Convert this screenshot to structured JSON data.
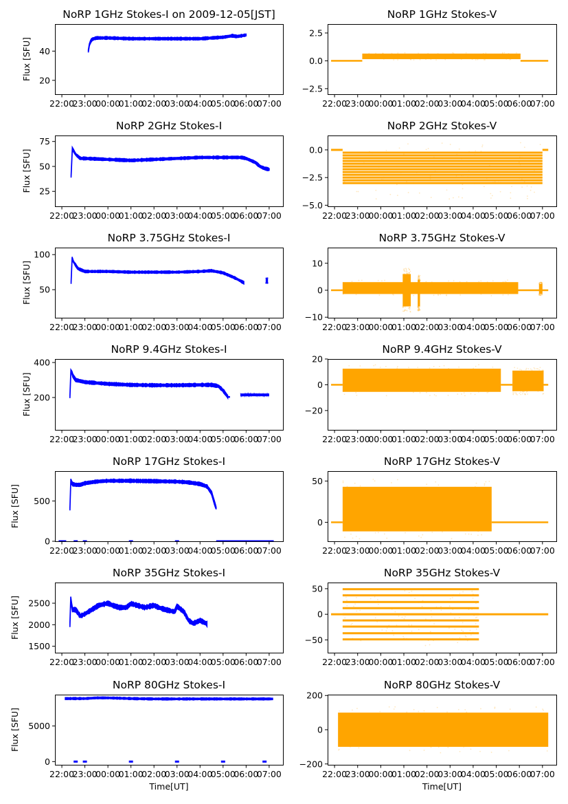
{
  "figure": {
    "xlabel": "Time[UT]",
    "ylabel": "Flux [SFU]",
    "colors": {
      "stokes_i": "#0000ff",
      "stokes_v": "#ffa500"
    }
  },
  "chart_data": [
    {
      "type": "scatter",
      "panel": "1GHz Stokes-I",
      "title": "NoRP 1GHz Stokes-I on 2009-12-05[JST]",
      "xlabel": "",
      "ylabel": "Flux [SFU]",
      "x_ticks": [
        "22:00",
        "23:00",
        "00:00",
        "01:00",
        "02:00",
        "03:00",
        "04:00",
        "05:00",
        "06:00",
        "07:00"
      ],
      "y_ticks": [
        20,
        40
      ],
      "ylim": [
        10.5,
        58.5
      ],
      "series": [
        {
          "name": "Stokes-I",
          "color": "#0000ff",
          "style": "band",
          "x_hours": [
            1.15,
            1.2,
            1.3,
            1.5,
            2.0,
            3.0,
            4.0,
            5.0,
            6.0,
            6.5,
            7.0,
            7.4,
            7.6,
            8.0
          ],
          "center": [
            40,
            45,
            48,
            49,
            49,
            48.5,
            48.5,
            48.5,
            48.5,
            49,
            49.5,
            50.5,
            50,
            51
          ],
          "halfwidth": 0.8
        }
      ]
    },
    {
      "type": "scatter",
      "panel": "1GHz Stokes-V",
      "title": "NoRP 1GHz Stokes-V",
      "xlabel": "",
      "ylabel": "",
      "x_ticks": [
        "22:00",
        "23:00",
        "00:00",
        "01:00",
        "02:00",
        "03:00",
        "04:00",
        "05:00",
        "06:00",
        "07:00"
      ],
      "y_ticks": [
        -2.5,
        0.0,
        2.5
      ],
      "y_tick_labels": [
        "−2.5",
        "0.0",
        "2.5"
      ],
      "ylim": [
        -3.0,
        3.3
      ],
      "series": [
        {
          "name": "Stokes-V",
          "color": "#ffa500",
          "style": "band",
          "segments": [
            {
              "x": [
                -0.15,
                1.2
              ],
              "center": 0.0,
              "halfwidth": 0.04
            },
            {
              "x": [
                1.2,
                8.05
              ],
              "center": 0.4,
              "halfwidth": 0.25
            },
            {
              "x": [
                8.05,
                9.25
              ],
              "center": 0.0,
              "halfwidth": 0.04
            }
          ]
        }
      ]
    },
    {
      "type": "scatter",
      "panel": "2GHz Stokes-I",
      "title": "NoRP 2GHz Stokes-I",
      "xlabel": "",
      "ylabel": "Flux [SFU]",
      "x_ticks": [
        "22:00",
        "23:00",
        "00:00",
        "01:00",
        "02:00",
        "03:00",
        "04:00",
        "05:00",
        "06:00",
        "07:00"
      ],
      "y_ticks": [
        25,
        50,
        75
      ],
      "ylim": [
        10,
        81
      ],
      "series": [
        {
          "name": "Stokes-I",
          "color": "#0000ff",
          "style": "band",
          "x_hours": [
            0.4,
            0.42,
            0.45,
            0.6,
            0.8,
            1.0,
            2.0,
            3.0,
            4.0,
            5.0,
            6.0,
            7.0,
            7.8,
            8.0,
            8.4,
            8.6,
            8.8,
            9.0
          ],
          "center": [
            40,
            72,
            68,
            62,
            58,
            58,
            57,
            56,
            57,
            58,
            59,
            59,
            59,
            58,
            54,
            50,
            48,
            47
          ],
          "halfwidth": 1.2
        }
      ]
    },
    {
      "type": "scatter",
      "panel": "2GHz Stokes-V",
      "title": "NoRP 2GHz Stokes-V",
      "xlabel": "",
      "ylabel": "",
      "x_ticks": [
        "22:00",
        "23:00",
        "00:00",
        "01:00",
        "02:00",
        "03:00",
        "04:00",
        "05:00",
        "06:00",
        "07:00"
      ],
      "y_ticks": [
        -5.0,
        -2.5,
        0.0
      ],
      "y_tick_labels": [
        "−5.0",
        "−2.5",
        "0.0"
      ],
      "ylim": [
        -5.1,
        1.3
      ],
      "series": [
        {
          "name": "Stokes-V",
          "color": "#ffa500",
          "style": "levels",
          "x_range": [
            0.35,
            9.0
          ],
          "levels": [
            -0.25,
            -0.5,
            -0.75,
            -1.0,
            -1.25,
            -1.5,
            -1.75,
            -2.0,
            -2.25,
            -2.5,
            -2.75,
            -3.0
          ],
          "zero_line_x": [
            [
              -0.15,
              0.35
            ],
            [
              9.0,
              9.25
            ]
          ]
        }
      ]
    },
    {
      "type": "scatter",
      "panel": "3.75GHz Stokes-I",
      "title": "NoRP 3.75GHz Stokes-I",
      "xlabel": "",
      "ylabel": "Flux [SFU]",
      "x_ticks": [
        "22:00",
        "23:00",
        "00:00",
        "01:00",
        "02:00",
        "03:00",
        "04:00",
        "05:00",
        "06:00",
        "07:00"
      ],
      "y_ticks": [
        50,
        100
      ],
      "ylim": [
        10,
        110
      ],
      "series": [
        {
          "name": "Stokes-I",
          "color": "#0000ff",
          "style": "band",
          "x_hours": [
            0.4,
            0.42,
            0.5,
            0.7,
            1.0,
            2.0,
            3.0,
            4.0,
            5.0,
            6.0,
            6.5,
            7.0,
            7.5,
            7.9
          ],
          "center": [
            60,
            98,
            90,
            80,
            76,
            76,
            75,
            75,
            75,
            76,
            77,
            74,
            67,
            60
          ],
          "halfwidth": 1.5,
          "extra": {
            "x": [
              8.85,
              8.95
            ],
            "center": 63,
            "halfwidth": 3
          }
        }
      ]
    },
    {
      "type": "scatter",
      "panel": "3.75GHz Stokes-V",
      "title": "NoRP 3.75GHz Stokes-V",
      "xlabel": "",
      "ylabel": "",
      "x_ticks": [
        "22:00",
        "23:00",
        "00:00",
        "01:00",
        "02:00",
        "03:00",
        "04:00",
        "05:00",
        "06:00",
        "07:00"
      ],
      "y_ticks": [
        -10,
        0,
        10
      ],
      "y_tick_labels": [
        "−10",
        "0",
        "10"
      ],
      "ylim": [
        -10.2,
        15.8
      ],
      "series": [
        {
          "name": "Stokes-V",
          "color": "#ffa500",
          "style": "band",
          "segments": [
            {
              "x": [
                -0.15,
                0.35
              ],
              "center": 0,
              "halfwidth": 0.3
            },
            {
              "x": [
                0.35,
                7.95
              ],
              "center": 0.8,
              "halfwidth": 2.2
            },
            {
              "x": [
                7.95,
                9.25
              ],
              "center": 0,
              "halfwidth": 0.3
            },
            {
              "x": [
                8.85,
                9.0
              ],
              "center": 0.5,
              "halfwidth": 1.8
            },
            {
              "x": [
                2.95,
                3.3
              ],
              "center": 0,
              "halfwidth": 6
            },
            {
              "x": [
                3.6,
                3.7
              ],
              "center": -1,
              "halfwidth": 5
            }
          ]
        }
      ]
    },
    {
      "type": "scatter",
      "panel": "9.4GHz Stokes-I",
      "title": "NoRP 9.4GHz Stokes-I",
      "xlabel": "",
      "ylabel": "Flux [SFU]",
      "x_ticks": [
        "22:00",
        "23:00",
        "00:00",
        "01:00",
        "02:00",
        "03:00",
        "04:00",
        "05:00",
        "06:00",
        "07:00"
      ],
      "y_ticks": [
        200,
        400
      ],
      "ylim": [
        15,
        420
      ],
      "series": [
        {
          "name": "Stokes-I",
          "color": "#0000ff",
          "style": "band",
          "x_hours": [
            0.35,
            0.4,
            0.45,
            0.6,
            1.0,
            2.0,
            3.0,
            4.0,
            5.0,
            6.0,
            6.5,
            6.8,
            7.0,
            7.2
          ],
          "center": [
            205,
            375,
            330,
            300,
            288,
            278,
            272,
            270,
            270,
            272,
            272,
            265,
            240,
            205
          ],
          "halfwidth": 8,
          "extra_segments": [
            {
              "x": [
                7.2,
                7.3
              ],
              "center": 203,
              "halfwidth": 5
            },
            {
              "x": [
                7.75,
                9.0
              ],
              "center": 215,
              "halfwidth": 8
            }
          ]
        }
      ]
    },
    {
      "type": "scatter",
      "panel": "9.4GHz Stokes-V",
      "title": "NoRP 9.4GHz Stokes-V",
      "xlabel": "",
      "ylabel": "",
      "x_ticks": [
        "22:00",
        "23:00",
        "00:00",
        "01:00",
        "02:00",
        "03:00",
        "04:00",
        "05:00",
        "06:00",
        "07:00"
      ],
      "y_ticks": [
        -20,
        0,
        20
      ],
      "y_tick_labels": [
        "−20",
        "0",
        "20"
      ],
      "ylim": [
        -35,
        20
      ],
      "series": [
        {
          "name": "Stokes-V",
          "color": "#ffa500",
          "style": "band",
          "segments": [
            {
              "x": [
                -0.15,
                0.35
              ],
              "center": 0,
              "halfwidth": 0.6
            },
            {
              "x": [
                0.35,
                7.2
              ],
              "center": 3.5,
              "halfwidth": 9
            },
            {
              "x": [
                7.2,
                7.7
              ],
              "center": 0,
              "halfwidth": 0.6
            },
            {
              "x": [
                7.7,
                9.05
              ],
              "center": 3,
              "halfwidth": 8
            },
            {
              "x": [
                9.05,
                9.25
              ],
              "center": 0,
              "halfwidth": 0.6
            }
          ]
        }
      ]
    },
    {
      "type": "scatter",
      "panel": "17GHz Stokes-I",
      "title": "NoRP 17GHz Stokes-I",
      "xlabel": "",
      "ylabel": "Flux [SFU]",
      "x_ticks": [
        "22:00",
        "23:00",
        "00:00",
        "01:00",
        "02:00",
        "03:00",
        "04:00",
        "05:00",
        "06:00",
        "07:00"
      ],
      "y_ticks": [
        0,
        500
      ],
      "ylim": [
        0,
        870
      ],
      "series": [
        {
          "name": "Stokes-I",
          "color": "#0000ff",
          "style": "band",
          "x_hours": [
            0.35,
            0.38,
            0.45,
            0.6,
            0.8,
            1.0,
            1.5,
            2.0,
            3.0,
            4.0,
            5.0,
            5.5,
            6.0,
            6.3,
            6.5,
            6.6,
            6.7
          ],
          "center": [
            400,
            760,
            710,
            700,
            700,
            720,
            740,
            750,
            750,
            745,
            740,
            730,
            710,
            680,
            600,
            500,
            410
          ],
          "halfwidth": 18,
          "zero_points": [
            -0.05,
            0.1,
            0.6,
            1.0,
            3.0,
            5.0
          ],
          "zero_line_x": [
            6.7,
            9.2
          ]
        }
      ]
    },
    {
      "type": "scatter",
      "panel": "17GHz Stokes-V",
      "title": "NoRP 17GHz Stokes-V",
      "xlabel": "",
      "ylabel": "",
      "x_ticks": [
        "22:00",
        "23:00",
        "00:00",
        "01:00",
        "02:00",
        "03:00",
        "04:00",
        "05:00",
        "06:00",
        "07:00"
      ],
      "y_ticks": [
        0,
        50
      ],
      "ylim": [
        -23,
        62
      ],
      "series": [
        {
          "name": "Stokes-V",
          "color": "#ffa500",
          "style": "band",
          "segments": [
            {
              "x": [
                -0.15,
                0.35
              ],
              "center": 0,
              "halfwidth": 1
            },
            {
              "x": [
                0.35,
                6.8
              ],
              "center": 16,
              "halfwidth": 27
            },
            {
              "x": [
                6.8,
                9.25
              ],
              "center": 0,
              "halfwidth": 1
            }
          ]
        }
      ]
    },
    {
      "type": "scatter",
      "panel": "35GHz Stokes-I",
      "title": "NoRP 35GHz Stokes-I",
      "xlabel": "",
      "ylabel": "Flux [SFU]",
      "x_ticks": [
        "22:00",
        "23:00",
        "00:00",
        "01:00",
        "02:00",
        "03:00",
        "04:00",
        "05:00",
        "06:00",
        "07:00"
      ],
      "y_ticks": [
        1500,
        2000,
        2500
      ],
      "ylim": [
        1350,
        2980
      ],
      "series": [
        {
          "name": "Stokes-I",
          "color": "#0000ff",
          "style": "band",
          "x_hours": [
            0.35,
            0.38,
            0.45,
            0.6,
            0.8,
            1.0,
            1.3,
            1.6,
            2.0,
            2.2,
            2.5,
            2.8,
            3.0,
            3.4,
            3.6,
            4.0,
            4.2,
            4.5,
            4.9,
            5.0,
            5.3,
            5.5,
            5.7,
            5.8,
            6.0,
            6.3
          ],
          "center": [
            2000,
            2650,
            2350,
            2350,
            2200,
            2250,
            2350,
            2450,
            2500,
            2450,
            2400,
            2400,
            2490,
            2430,
            2400,
            2450,
            2400,
            2350,
            2300,
            2430,
            2300,
            2100,
            2030,
            2050,
            2100,
            2020
          ],
          "halfwidth": 45
        }
      ]
    },
    {
      "type": "scatter",
      "panel": "35GHz Stokes-V",
      "title": "NoRP 35GHz Stokes-V",
      "xlabel": "",
      "ylabel": "",
      "x_ticks": [
        "22:00",
        "23:00",
        "00:00",
        "01:00",
        "02:00",
        "03:00",
        "04:00",
        "05:00",
        "06:00",
        "07:00"
      ],
      "y_ticks": [
        -50,
        0,
        50
      ],
      "y_tick_labels": [
        "−50",
        "0",
        "50"
      ],
      "ylim": [
        -75,
        62
      ],
      "series": [
        {
          "name": "Stokes-V",
          "color": "#ffa500",
          "style": "levels",
          "x_range": [
            0.35,
            6.25
          ],
          "levels": [
            -49,
            -37,
            -24,
            -12,
            0,
            12,
            24,
            37,
            49
          ],
          "zero_line_x": [
            [
              -0.15,
              9.25
            ]
          ]
        }
      ]
    },
    {
      "type": "scatter",
      "panel": "80GHz Stokes-I",
      "title": "NoRP 80GHz Stokes-I",
      "xlabel": "Time[UT]",
      "ylabel": "Flux [SFU]",
      "x_ticks": [
        "22:00",
        "23:00",
        "00:00",
        "01:00",
        "02:00",
        "03:00",
        "04:00",
        "05:00",
        "06:00",
        "07:00"
      ],
      "y_ticks": [
        0,
        5000
      ],
      "ylim": [
        -450,
        9400
      ],
      "series": [
        {
          "name": "Stokes-I",
          "color": "#0000ff",
          "style": "band",
          "x_hours": [
            0.15,
            1.0,
            1.5,
            2.0,
            3.0,
            4.0,
            5.0,
            6.0,
            7.0,
            8.0,
            9.15
          ],
          "center": [
            8850,
            8850,
            8950,
            8950,
            8850,
            8800,
            8800,
            8800,
            8800,
            8800,
            8800
          ],
          "halfwidth": 120,
          "zero_points": [
            0.6,
            1.0,
            3.0,
            5.0,
            7.0,
            8.8
          ]
        }
      ]
    },
    {
      "type": "scatter",
      "panel": "80GHz Stokes-V",
      "title": "NoRP 80GHz Stokes-V",
      "xlabel": "Time[UT]",
      "ylabel": "",
      "x_ticks": [
        "22:00",
        "23:00",
        "00:00",
        "01:00",
        "02:00",
        "03:00",
        "04:00",
        "05:00",
        "06:00",
        "07:00"
      ],
      "y_ticks": [
        -200,
        0,
        200
      ],
      "y_tick_labels": [
        "−200",
        "0",
        "200"
      ],
      "ylim": [
        -205,
        205
      ],
      "series": [
        {
          "name": "Stokes-V",
          "color": "#ffa500",
          "style": "band",
          "segments": [
            {
              "x": [
                0.15,
                9.25
              ],
              "center": 0,
              "halfwidth": 100
            }
          ]
        }
      ]
    }
  ]
}
